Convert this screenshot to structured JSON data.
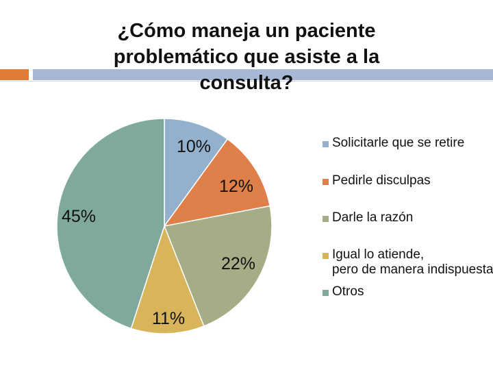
{
  "chart_data": {
    "type": "pie",
    "title": "¿Cómo maneja un paciente problemático que asiste a la consulta?",
    "categories": [
      "Solicitarle que se retire",
      "Pedirle disculpas",
      "Darle la razón",
      "Igual lo atiende, pero de manera indispuesta",
      "Otros"
    ],
    "values": [
      10,
      12,
      22,
      11,
      45
    ],
    "labels": [
      "10%",
      "12%",
      "22%",
      "11%",
      "45%"
    ],
    "colors": [
      "#93b1cd",
      "#df7f4a",
      "#a4ad85",
      "#d8b45b",
      "#7ea99c"
    ],
    "legend_position": "right"
  }
}
